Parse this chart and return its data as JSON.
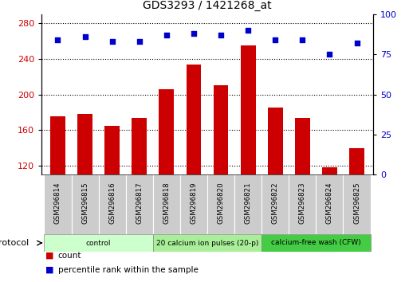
{
  "title": "GDS3293 / 1421268_at",
  "categories": [
    "GSM296814",
    "GSM296815",
    "GSM296816",
    "GSM296817",
    "GSM296818",
    "GSM296819",
    "GSM296820",
    "GSM296821",
    "GSM296822",
    "GSM296823",
    "GSM296824",
    "GSM296825"
  ],
  "bar_values": [
    175,
    178,
    165,
    174,
    206,
    234,
    210,
    255,
    185,
    174,
    118,
    140
  ],
  "percentile_values": [
    84,
    86,
    83,
    83,
    87,
    88,
    87,
    90,
    84,
    84,
    75,
    82
  ],
  "bar_color": "#cc0000",
  "percentile_color": "#0000cc",
  "ylim_left": [
    110,
    290
  ],
  "ylim_right": [
    0,
    100
  ],
  "yticks_left": [
    120,
    160,
    200,
    240,
    280
  ],
  "yticks_right": [
    0,
    25,
    50,
    75,
    100
  ],
  "groups": [
    {
      "label": "control",
      "start": 0,
      "end": 3,
      "color": "#ccffcc"
    },
    {
      "label": "20 calcium ion pulses (20-p)",
      "start": 4,
      "end": 7,
      "color": "#aaee99"
    },
    {
      "label": "calcium-free wash (CFW)",
      "start": 8,
      "end": 11,
      "color": "#44cc44"
    }
  ],
  "protocol_label": "protocol",
  "legend_count_label": "count",
  "legend_percentile_label": "percentile rank within the sample",
  "bar_width": 0.55,
  "dotted_line_color": "#000000",
  "bg_color": "#ffffff",
  "plot_bg_color": "#ffffff",
  "tick_label_color_left": "#cc0000",
  "tick_label_color_right": "#0000cc",
  "xlabel_bg_color": "#cccccc"
}
